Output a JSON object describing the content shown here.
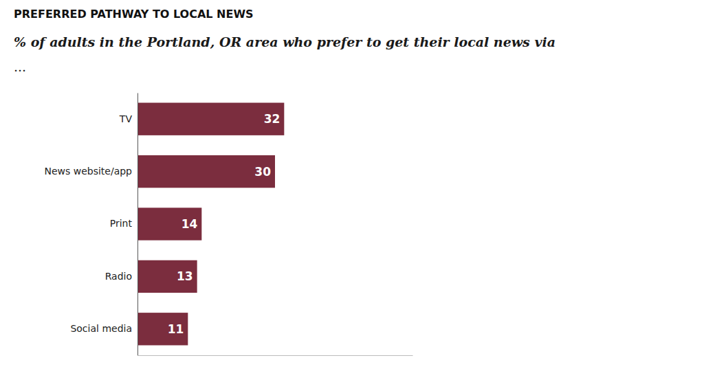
{
  "chart_data": {
    "type": "bar",
    "orientation": "horizontal",
    "title": "PREFERRED PATHWAY TO LOCAL NEWS",
    "subtitle": "% of adults in the Portland, OR area who prefer to get their local news via",
    "annotations": [
      "..."
    ],
    "categories": [
      "TV",
      "News website/app",
      "Print",
      "Radio",
      "Social media"
    ],
    "values": [
      32,
      30,
      14,
      13,
      11
    ],
    "color": "#7b2d3e",
    "xlim": [
      0,
      60
    ],
    "data_labels": true,
    "tick_labels": "y",
    "grid": false
  }
}
